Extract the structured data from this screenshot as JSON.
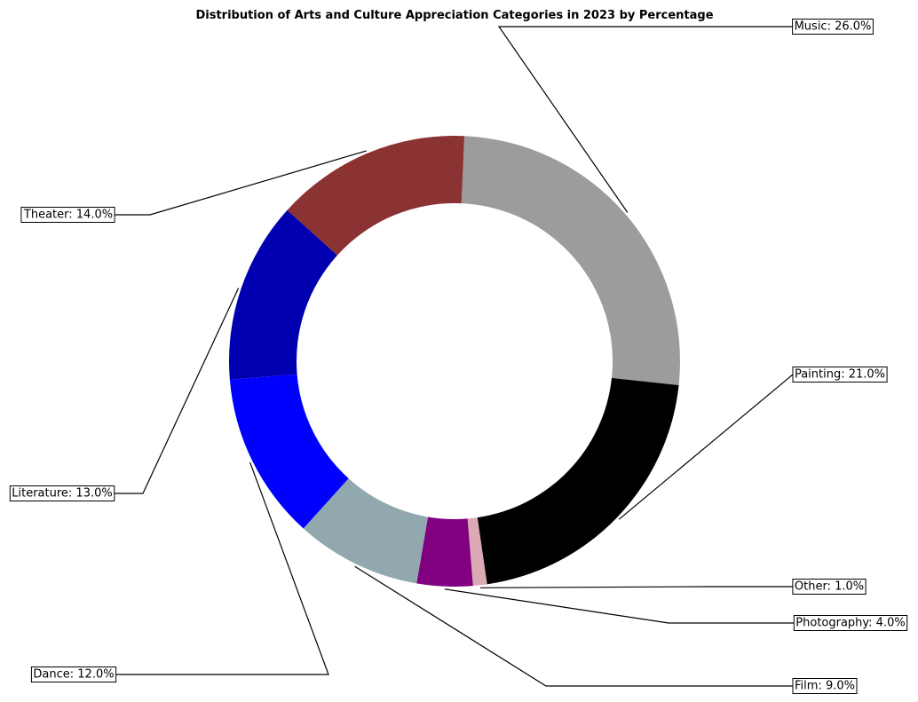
{
  "chart_data": {
    "type": "pie",
    "style": "donut",
    "title": "Distribution of Arts and Culture Appreciation Categories in 2023 by Percentage",
    "slices": [
      {
        "label": "Music",
        "value": 26.0,
        "color": "#9c9c9c",
        "display": "Music: 26.0%"
      },
      {
        "label": "Painting",
        "value": 21.0,
        "color": "#000000",
        "display": "Painting: 21.0%"
      },
      {
        "label": "Other",
        "value": 1.0,
        "color": "#dcaab4",
        "display": "Other: 1.0%"
      },
      {
        "label": "Photography",
        "value": 4.0,
        "color": "#800080",
        "display": "Photography: 4.0%"
      },
      {
        "label": "Film",
        "value": 9.0,
        "color": "#91a8af",
        "display": "Film: 9.0%"
      },
      {
        "label": "Dance",
        "value": 12.0,
        "color": "#0000ff",
        "display": "Dance: 12.0%"
      },
      {
        "label": "Literature",
        "value": 13.0,
        "color": "#0000b0",
        "display": "Literature: 13.0%"
      },
      {
        "label": "Theater",
        "value": 14.0,
        "color": "#8b3232",
        "display": "Theater: 14.0%"
      }
    ],
    "legend": "none"
  }
}
